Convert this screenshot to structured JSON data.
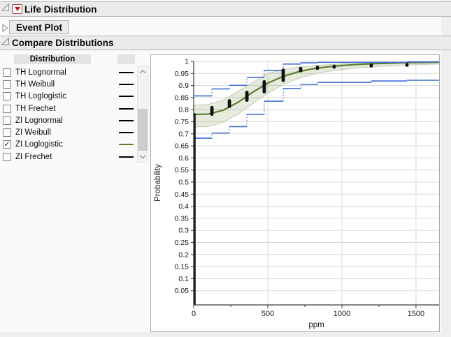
{
  "sections": {
    "life_distribution": {
      "title": "Life Distribution"
    },
    "event_plot": {
      "title": "Event Plot"
    },
    "compare_distributions": {
      "title": "Compare Distributions"
    }
  },
  "distribution_list": {
    "column_header": "Distribution",
    "style_column_header": "",
    "check_glyph": "✓",
    "items": [
      {
        "label": "TH Lognormal",
        "checked": false,
        "line_color": "#000000"
      },
      {
        "label": "TH Weibull",
        "checked": false,
        "line_color": "#000000"
      },
      {
        "label": "TH Loglogistic",
        "checked": false,
        "line_color": "#000000"
      },
      {
        "label": "TH Frechet",
        "checked": false,
        "line_color": "#000000"
      },
      {
        "label": "ZI Lognormal",
        "checked": false,
        "line_color": "#000000"
      },
      {
        "label": "ZI Weibull",
        "checked": false,
        "line_color": "#000000"
      },
      {
        "label": "ZI Loglogistic",
        "checked": true,
        "line_color": "#5b7f2d"
      },
      {
        "label": "ZI Frechet",
        "checked": false,
        "line_color": "#000000"
      }
    ]
  },
  "chart_data": {
    "type": "line",
    "title": "",
    "xlabel": "ppm",
    "ylabel": "Probability",
    "xlim": [
      0,
      1656
    ],
    "ylim": [
      0,
      1
    ],
    "grid": true,
    "x_ticks": [
      0,
      500,
      1000,
      1500
    ],
    "x_minor_ticks": [
      250,
      750,
      1250
    ],
    "y_ticks": [
      0.05,
      0.1,
      0.15,
      0.2,
      0.25,
      0.3,
      0.35,
      0.4,
      0.45,
      0.5,
      0.55,
      0.6,
      0.65,
      0.7,
      0.75,
      0.8,
      0.85,
      0.9,
      0.95,
      1
    ],
    "colors": {
      "fit": "#5b7f2d",
      "band_fill": "rgba(107,138,60,0.17)",
      "band_edge": "#c2cbb4",
      "ci": "#3f6fd6",
      "points": "#111111",
      "grid": "#d9d9d9",
      "axis": "#3a3a3a"
    },
    "series": [
      {
        "name": "ZI Loglogistic fit",
        "type": "line",
        "points": [
          [
            0,
            0.78
          ],
          [
            100,
            0.782
          ],
          [
            200,
            0.798
          ],
          [
            300,
            0.831
          ],
          [
            400,
            0.873
          ],
          [
            500,
            0.91
          ],
          [
            600,
            0.937
          ],
          [
            700,
            0.956
          ],
          [
            800,
            0.969
          ],
          [
            900,
            0.977
          ],
          [
            1000,
            0.983
          ],
          [
            1100,
            0.987
          ],
          [
            1200,
            0.99
          ],
          [
            1300,
            0.992
          ],
          [
            1400,
            0.994
          ],
          [
            1500,
            0.995
          ],
          [
            1600,
            0.996
          ],
          [
            1656,
            0.9962
          ]
        ]
      },
      {
        "name": "ZI Loglogistic confidence band",
        "type": "band",
        "upper": [
          [
            0,
            0.818
          ],
          [
            100,
            0.822
          ],
          [
            200,
            0.84
          ],
          [
            300,
            0.876
          ],
          [
            400,
            0.914
          ],
          [
            500,
            0.95
          ],
          [
            600,
            0.966
          ],
          [
            700,
            0.976
          ],
          [
            800,
            0.982
          ],
          [
            900,
            0.986
          ],
          [
            1000,
            0.989
          ],
          [
            1100,
            0.991
          ],
          [
            1200,
            0.993
          ],
          [
            1300,
            0.994
          ],
          [
            1400,
            0.995
          ],
          [
            1500,
            0.996
          ],
          [
            1600,
            0.997
          ],
          [
            1656,
            0.9975
          ]
        ],
        "lower": [
          [
            0,
            0.728
          ],
          [
            100,
            0.73
          ],
          [
            200,
            0.748
          ],
          [
            300,
            0.782
          ],
          [
            400,
            0.826
          ],
          [
            500,
            0.868
          ],
          [
            600,
            0.903
          ],
          [
            700,
            0.928
          ],
          [
            800,
            0.946
          ],
          [
            900,
            0.958
          ],
          [
            1000,
            0.966
          ],
          [
            1100,
            0.972
          ],
          [
            1200,
            0.977
          ],
          [
            1300,
            0.981
          ],
          [
            1400,
            0.984
          ],
          [
            1500,
            0.986
          ],
          [
            1600,
            0.988
          ],
          [
            1656,
            0.9885
          ]
        ]
      },
      {
        "name": "nonparametric estimate points",
        "type": "intervals",
        "intervals": [
          [
            123,
            0.78,
            0.81
          ],
          [
            241,
            0.812,
            0.838
          ],
          [
            359,
            0.838,
            0.873
          ],
          [
            476,
            0.873,
            0.917
          ],
          [
            604,
            0.92,
            0.965
          ],
          [
            722,
            0.96,
            0.972
          ],
          [
            835,
            0.97,
            0.977
          ],
          [
            948,
            0.975,
            0.981
          ],
          [
            1198,
            0.98,
            0.986
          ],
          [
            1439,
            0.983,
            0.988
          ]
        ]
      },
      {
        "name": "zero inflation step",
        "type": "vline",
        "x": 6,
        "y1": 0,
        "y2": 0.785
      },
      {
        "name": "pointwise CI upper",
        "type": "steps",
        "segments": [
          [
            0,
            123,
            0.857
          ],
          [
            123,
            241,
            0.886
          ],
          [
            241,
            359,
            0.901
          ],
          [
            359,
            476,
            0.934
          ],
          [
            476,
            604,
            0.963
          ],
          [
            604,
            722,
            0.989
          ],
          [
            722,
            835,
            0.994
          ],
          [
            835,
            1439,
            0.996
          ],
          [
            1439,
            1656,
            0.998
          ]
        ]
      },
      {
        "name": "pointwise CI lower",
        "type": "steps",
        "segments": [
          [
            0,
            123,
            0.682
          ],
          [
            123,
            241,
            0.703
          ],
          [
            241,
            359,
            0.73
          ],
          [
            359,
            476,
            0.781
          ],
          [
            476,
            604,
            0.835
          ],
          [
            604,
            722,
            0.888
          ],
          [
            722,
            835,
            0.905
          ],
          [
            835,
            1198,
            0.913
          ],
          [
            1198,
            1439,
            0.919
          ],
          [
            1439,
            1656,
            0.922
          ]
        ]
      }
    ]
  }
}
